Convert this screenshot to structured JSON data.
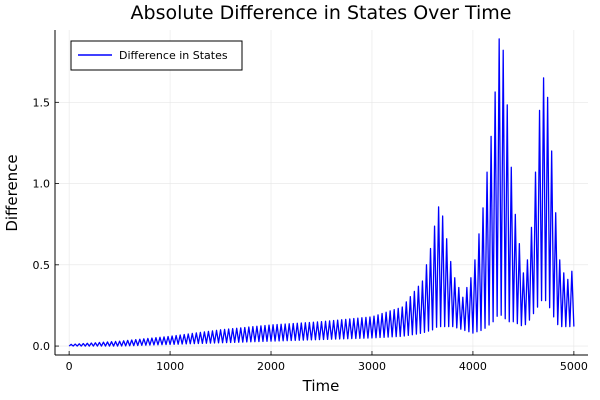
{
  "chart_data": {
    "type": "line",
    "title": "Absolute Difference in States Over Time",
    "xlabel": "Time",
    "ylabel": "Difference",
    "xlim": [
      -140,
      5140
    ],
    "ylim": [
      -0.055,
      1.945
    ],
    "xticks": [
      0,
      1000,
      2000,
      3000,
      4000,
      5000
    ],
    "xtick_labels": [
      "0",
      "1000",
      "2000",
      "3000",
      "4000",
      "5000"
    ],
    "yticks": [
      0.0,
      0.5,
      1.0,
      1.5
    ],
    "ytick_labels": [
      "0.0",
      "0.5",
      "1.0",
      "1.5"
    ],
    "grid": true,
    "legend_position": "top-left",
    "series": [
      {
        "name": "Difference in States",
        "color": "#0000ff",
        "envelope": {
          "x": [
            0,
            500,
            1000,
            1500,
            2000,
            2500,
            3000,
            3300,
            3500,
            3600,
            3650,
            3700,
            3800,
            3900,
            4000,
            4100,
            4200,
            4260,
            4300,
            4350,
            4400,
            4500,
            4550,
            4600,
            4650,
            4700,
            4750,
            4800,
            4850,
            4900,
            4950,
            5000
          ],
          "upper": [
            0.01,
            0.03,
            0.06,
            0.1,
            0.13,
            0.15,
            0.18,
            0.24,
            0.4,
            0.65,
            0.87,
            0.8,
            0.45,
            0.3,
            0.45,
            0.85,
            1.4,
            1.89,
            1.82,
            1.4,
            0.9,
            0.45,
            0.55,
            0.85,
            1.4,
            1.65,
            1.5,
            1.0,
            0.55,
            0.45,
            0.4,
            0.5
          ],
          "lower": [
            0.0,
            0.0,
            0.01,
            0.02,
            0.03,
            0.04,
            0.05,
            0.06,
            0.08,
            0.1,
            0.12,
            0.12,
            0.12,
            0.1,
            0.08,
            0.1,
            0.15,
            0.2,
            0.18,
            0.15,
            0.15,
            0.12,
            0.15,
            0.2,
            0.25,
            0.3,
            0.25,
            0.18,
            0.12,
            0.12,
            0.12,
            0.12
          ]
        },
        "oscillation_period": 40
      }
    ]
  }
}
